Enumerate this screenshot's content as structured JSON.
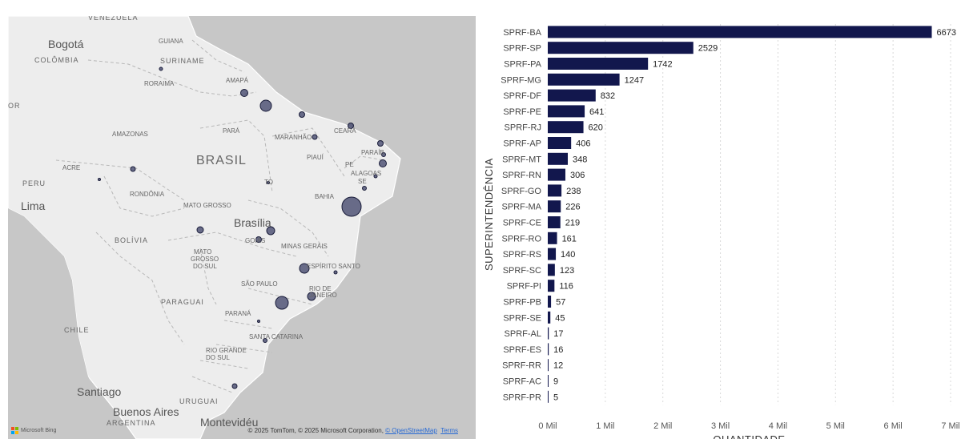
{
  "map": {
    "labels": [
      {
        "text": "VENEZUELA",
        "cls": "ml-country"
      },
      {
        "text": "Bogotá",
        "cls": "ml-city"
      },
      {
        "text": "COLÔMBIA",
        "cls": "ml-country"
      },
      {
        "text": "GUIANA",
        "cls": "ml-state"
      },
      {
        "text": "SURINAME",
        "cls": "ml-country"
      },
      {
        "text": "RORAIMA",
        "cls": "ml-state"
      },
      {
        "text": "AMAPÁ",
        "cls": "ml-state"
      },
      {
        "text": "OR",
        "cls": "ml-country"
      },
      {
        "text": "AMAZONAS",
        "cls": "ml-state"
      },
      {
        "text": "PARÁ",
        "cls": "ml-state"
      },
      {
        "text": "MARANHÃO",
        "cls": "ml-state"
      },
      {
        "text": "CEARÁ",
        "cls": "ml-state"
      },
      {
        "text": "PARAÍB",
        "cls": "ml-state"
      },
      {
        "text": "BRASIL",
        "cls": "ml-big"
      },
      {
        "text": "PIAUÍ",
        "cls": "ml-state"
      },
      {
        "text": "PE",
        "cls": "ml-state"
      },
      {
        "text": "ALAGOAS",
        "cls": "ml-state"
      },
      {
        "text": "SE",
        "cls": "ml-state"
      },
      {
        "text": "ACRE",
        "cls": "ml-state"
      },
      {
        "text": "PERU",
        "cls": "ml-country"
      },
      {
        "text": "TO",
        "cls": "ml-state"
      },
      {
        "text": "RONDÔNIA",
        "cls": "ml-state"
      },
      {
        "text": "BAHIA",
        "cls": "ml-state"
      },
      {
        "text": "Lima",
        "cls": "ml-city"
      },
      {
        "text": "MATO GROSSO",
        "cls": "ml-state"
      },
      {
        "text": "Brasília",
        "cls": "ml-city"
      },
      {
        "text": "BOLÍVIA",
        "cls": "ml-country"
      },
      {
        "text": "GOIÁS",
        "cls": "ml-state"
      },
      {
        "text": "MINAS GERAIS",
        "cls": "ml-state"
      },
      {
        "text": "MATO",
        "cls": "ml-state"
      },
      {
        "text": "GROSSO",
        "cls": "ml-state"
      },
      {
        "text": "DO SUL",
        "cls": "ml-state"
      },
      {
        "text": "ESPÍRITO SANTO",
        "cls": "ml-state"
      },
      {
        "text": "SÃO PAULO",
        "cls": "ml-state"
      },
      {
        "text": "RIO DE",
        "cls": "ml-state"
      },
      {
        "text": "JANEIRO",
        "cls": "ml-state"
      },
      {
        "text": "PARAGUAI",
        "cls": "ml-country"
      },
      {
        "text": "PARANÁ",
        "cls": "ml-state"
      },
      {
        "text": "CHILE",
        "cls": "ml-country"
      },
      {
        "text": "SANTA CATARINA",
        "cls": "ml-state"
      },
      {
        "text": "RIO GRANDE",
        "cls": "ml-state"
      },
      {
        "text": "DO SUL",
        "cls": "ml-state"
      },
      {
        "text": "Santiago",
        "cls": "ml-city"
      },
      {
        "text": "URUGUAI",
        "cls": "ml-country"
      },
      {
        "text": "Buenos Aires",
        "cls": "ml-city"
      },
      {
        "text": "ARGENTINA",
        "cls": "ml-country"
      },
      {
        "text": "Montevidéu",
        "cls": "ml-city"
      }
    ],
    "bing": "Microsoft Bing",
    "attribution_pre": "© 2025 TomTom, © 2025 Microsoft Corporation, ",
    "attribution_link": "© OpenStreetMap",
    "attribution_terms": "Terms",
    "land_color": "#ededed",
    "sea_color": "#c7c7c7",
    "bubble_color": "#3b3f66"
  },
  "chart_data": {
    "type": "bar",
    "orientation": "horizontal",
    "categories": [
      "SPRF-BA",
      "SPRF-SP",
      "SPRF-PA",
      "SPRF-MG",
      "SPRF-DF",
      "SPRF-PE",
      "SPRF-RJ",
      "SPRF-AP",
      "SPRF-MT",
      "SPRF-RN",
      "SPRF-GO",
      "SPRF-MA",
      "SPRF-CE",
      "SPRF-RO",
      "SPRF-RS",
      "SPRF-SC",
      "SPRF-PI",
      "SPRF-PB",
      "SPRF-SE",
      "SPRF-AL",
      "SPRF-ES",
      "SPRF-RR",
      "SPRF-AC",
      "SPRF-PR"
    ],
    "values": [
      6673,
      2529,
      1742,
      1247,
      832,
      641,
      620,
      406,
      348,
      306,
      238,
      226,
      219,
      161,
      140,
      123,
      116,
      57,
      45,
      17,
      16,
      12,
      9,
      5
    ],
    "xlabel": "QUANTIDADE",
    "ylabel": "SUPERINTENDÊNCIA",
    "xlim": [
      0,
      7000
    ],
    "xticks": [
      0,
      1000,
      2000,
      3000,
      4000,
      5000,
      6000,
      7000
    ],
    "xtick_labels": [
      "0 Mil",
      "1 Mil",
      "2 Mil",
      "3 Mil",
      "4 Mil",
      "5 Mil",
      "6 Mil",
      "7 Mil"
    ],
    "grid": true,
    "bar_color": "#12174d"
  }
}
